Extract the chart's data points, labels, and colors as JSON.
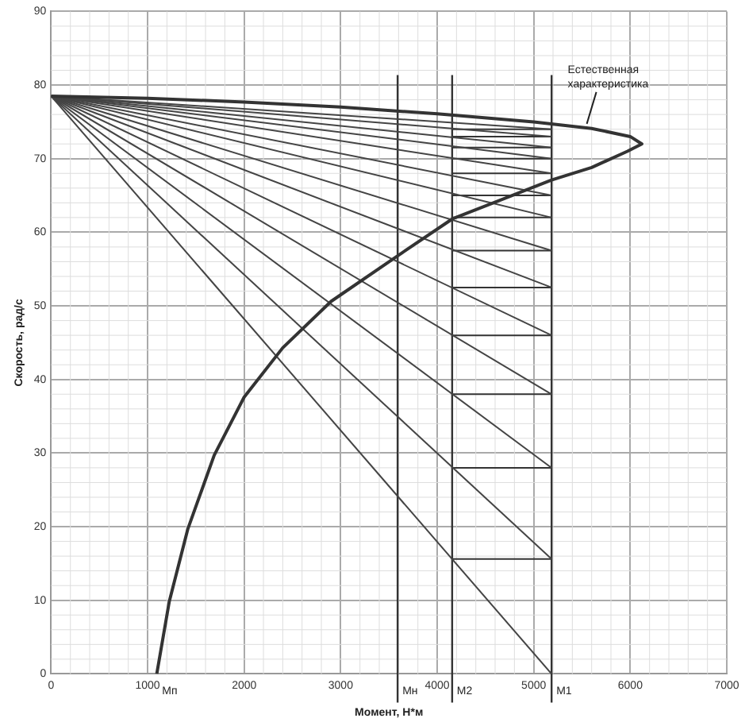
{
  "chart_data": {
    "type": "line",
    "xlabel": "Момент, Н*м",
    "ylabel": "Скорость, рад/с",
    "xlim": [
      0,
      7000
    ],
    "ylim": [
      0,
      90
    ],
    "xticks": [
      0,
      1000,
      2000,
      3000,
      4000,
      5000,
      6000,
      7000
    ],
    "yticks": [
      0,
      10,
      20,
      30,
      40,
      50,
      60,
      70,
      80,
      90
    ],
    "grid": true,
    "legend": false,
    "marker": "none",
    "line_style": "solid",
    "series": [
      {
        "color": "#333333",
        "x": [
          0,
          1000,
          2000,
          3000,
          4000,
          5000,
          5600,
          6000,
          6120,
          5970,
          5600,
          5185,
          4155,
          3590,
          2900,
          2400,
          2000,
          1690,
          1417,
          1224,
          1095
        ],
        "values": [
          78.5,
          78.2,
          77.7,
          77,
          76.1,
          75,
          74.1,
          73,
          72,
          71,
          68.8,
          67.1,
          61.8,
          56.8,
          50.6,
          44.3,
          37.6,
          29.7,
          19.7,
          9.8,
          0
        ]
      },
      {
        "color": "#444444",
        "x": [
          0,
          5185
        ],
        "values": [
          78.5,
          0
        ]
      },
      {
        "color": "#444444",
        "x": [
          0,
          5185
        ],
        "values": [
          78.5,
          15.6
        ]
      },
      {
        "color": "#444444",
        "x": [
          0,
          5185
        ],
        "values": [
          78.5,
          28
        ]
      },
      {
        "color": "#444444",
        "x": [
          0,
          5185
        ],
        "values": [
          78.5,
          38
        ]
      },
      {
        "color": "#444444",
        "x": [
          0,
          5185
        ],
        "values": [
          78.5,
          46
        ]
      },
      {
        "color": "#444444",
        "x": [
          0,
          5185
        ],
        "values": [
          78.5,
          52.5
        ]
      },
      {
        "color": "#444444",
        "x": [
          0,
          5185
        ],
        "values": [
          78.5,
          57.5
        ]
      },
      {
        "color": "#444444",
        "x": [
          0,
          5185
        ],
        "values": [
          78.5,
          62
        ]
      },
      {
        "color": "#444444",
        "x": [
          0,
          5185
        ],
        "values": [
          78.5,
          65
        ]
      },
      {
        "color": "#444444",
        "x": [
          0,
          5185
        ],
        "values": [
          78.5,
          68
        ]
      },
      {
        "color": "#444444",
        "x": [
          0,
          5185
        ],
        "values": [
          78.5,
          70
        ]
      },
      {
        "color": "#444444",
        "x": [
          0,
          5185
        ],
        "values": [
          78.5,
          71.5
        ]
      },
      {
        "color": "#444444",
        "x": [
          0,
          5185
        ],
        "values": [
          78.5,
          73
        ]
      },
      {
        "color": "#444444",
        "x": [
          0,
          5185
        ],
        "values": [
          78.5,
          74
        ]
      },
      {
        "color": "#333333",
        "x": [
          4155,
          5185
        ],
        "values": [
          15.6,
          15.6
        ]
      },
      {
        "color": "#333333",
        "x": [
          4155,
          5185
        ],
        "values": [
          28,
          28
        ]
      },
      {
        "color": "#333333",
        "x": [
          4155,
          5185
        ],
        "values": [
          38,
          38
        ]
      },
      {
        "color": "#333333",
        "x": [
          4155,
          5185
        ],
        "values": [
          46,
          46
        ]
      },
      {
        "color": "#333333",
        "x": [
          4155,
          5185
        ],
        "values": [
          52.5,
          52.5
        ]
      },
      {
        "color": "#333333",
        "x": [
          4155,
          5185
        ],
        "values": [
          57.5,
          57.5
        ]
      },
      {
        "color": "#333333",
        "x": [
          4155,
          5185
        ],
        "values": [
          62,
          62
        ]
      },
      {
        "color": "#333333",
        "x": [
          4155,
          5185
        ],
        "values": [
          65,
          65
        ]
      },
      {
        "color": "#333333",
        "x": [
          4155,
          5185
        ],
        "values": [
          68,
          68
        ]
      },
      {
        "color": "#333333",
        "x": [
          4155,
          5185
        ],
        "values": [
          70,
          70
        ]
      },
      {
        "color": "#333333",
        "x": [
          4155,
          5185
        ],
        "values": [
          71.5,
          71.5
        ]
      },
      {
        "color": "#333333",
        "x": [
          4155,
          5185
        ],
        "values": [
          73,
          73
        ]
      },
      {
        "color": "#333333",
        "x": [
          4155,
          5185
        ],
        "values": [
          74,
          74
        ]
      }
    ],
    "ref_lines": [
      {
        "axis": "x",
        "value": 3590,
        "label": "Мн",
        "color": "#333333"
      },
      {
        "axis": "x",
        "value": 4155,
        "label": "М2",
        "color": "#333333"
      },
      {
        "axis": "x",
        "value": 5185,
        "label": "М1",
        "color": "#333333"
      }
    ],
    "annotations": [
      {
        "text": "Естественная характеристика",
        "x": 5550,
        "y": 74.3
      },
      {
        "text": "Мп",
        "x": 1150,
        "y": 0
      }
    ]
  }
}
